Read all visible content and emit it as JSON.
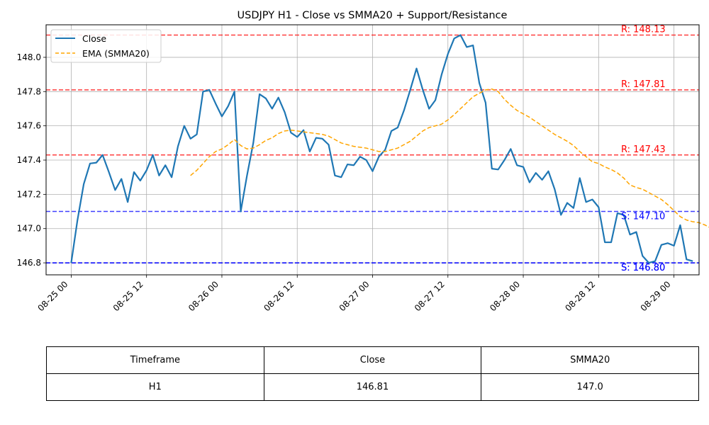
{
  "chart_data": {
    "type": "line",
    "title": "USDJPY H1 - Close vs SMMA20 + Support/Resistance",
    "xlabel": "",
    "ylabel": "",
    "x_range": [
      "2025-08-24 20:00",
      "2025-08-29 04:00"
    ],
    "ylim": [
      146.73,
      148.19
    ],
    "x_ticks": [
      "08-25 00",
      "08-25 12",
      "08-26 00",
      "08-26 12",
      "08-27 00",
      "08-27 12",
      "08-28 00",
      "08-28 12",
      "08-29 00"
    ],
    "y_ticks": [
      "146.8",
      "147.0",
      "147.2",
      "147.4",
      "147.6",
      "147.8",
      "148.0"
    ],
    "grid": true,
    "legend_position": "top-left",
    "series": [
      {
        "name": "Close",
        "color": "#1f77b4",
        "style": "solid",
        "start": "2025-08-25 00:00",
        "step_hours": 1,
        "values": [
          146.8,
          147.05,
          147.26,
          147.38,
          147.385,
          147.43,
          147.33,
          147.225,
          147.29,
          147.155,
          147.33,
          147.28,
          147.34,
          147.43,
          147.31,
          147.37,
          147.3,
          147.48,
          147.6,
          147.525,
          147.55,
          147.8,
          147.81,
          147.73,
          147.655,
          147.715,
          147.8,
          147.1,
          147.31,
          147.5,
          147.785,
          147.76,
          147.7,
          147.765,
          147.68,
          147.56,
          147.535,
          147.575,
          147.45,
          147.53,
          147.525,
          147.49,
          147.31,
          147.3,
          147.375,
          147.37,
          147.42,
          147.4,
          147.335,
          147.42,
          147.46,
          147.57,
          147.59,
          147.69,
          147.81,
          147.935,
          147.81,
          147.7,
          147.75,
          147.9,
          148.02,
          148.11,
          148.13,
          148.06,
          148.07,
          147.85,
          147.735,
          147.35,
          147.345,
          147.4,
          147.465,
          147.37,
          147.36,
          147.27,
          147.325,
          147.285,
          147.335,
          147.23,
          147.08,
          147.15,
          147.12,
          147.295,
          147.155,
          147.17,
          147.125,
          146.92,
          146.92,
          147.09,
          147.08,
          146.965,
          146.98,
          146.84,
          146.8,
          146.81,
          146.905,
          146.915,
          146.9,
          147.02,
          146.82,
          146.81
        ]
      },
      {
        "name": "EMA (SMMA20)",
        "color": "#ffa500",
        "style": "dashed",
        "start": "2025-08-25 19:00",
        "step_hours": 1,
        "values": [
          147.31,
          147.34,
          147.38,
          147.42,
          147.45,
          147.465,
          147.49,
          147.52,
          147.485,
          147.465,
          147.47,
          147.49,
          147.515,
          147.53,
          147.555,
          147.57,
          147.575,
          147.57,
          147.565,
          147.56,
          147.555,
          147.55,
          147.54,
          147.52,
          147.5,
          147.49,
          147.48,
          147.475,
          147.47,
          147.46,
          147.45,
          147.45,
          147.46,
          147.47,
          147.49,
          147.51,
          147.54,
          147.57,
          147.59,
          147.6,
          147.61,
          147.635,
          147.665,
          147.7,
          147.735,
          147.77,
          147.79,
          147.81,
          147.815,
          147.8,
          147.755,
          147.72,
          147.69,
          147.67,
          147.65,
          147.625,
          147.6,
          147.575,
          147.55,
          147.53,
          147.51,
          147.485,
          147.45,
          147.42,
          147.39,
          147.38,
          147.36,
          147.345,
          147.325,
          147.295,
          147.255,
          147.24,
          147.23,
          147.21,
          147.19,
          147.17,
          147.14,
          147.105,
          147.07,
          147.05,
          147.04,
          147.035,
          147.02,
          147.0
        ]
      }
    ],
    "levels": [
      {
        "kind": "resistance",
        "value": 148.13,
        "label": "R: 148.13",
        "color": "#ff0000"
      },
      {
        "kind": "resistance",
        "value": 147.81,
        "label": "R: 147.81",
        "color": "#ff0000"
      },
      {
        "kind": "resistance",
        "value": 147.43,
        "label": "R: 147.43",
        "color": "#ff0000"
      },
      {
        "kind": "support",
        "value": 147.1,
        "label": "S: 147.10",
        "color": "#0000ff"
      },
      {
        "kind": "support",
        "value": 146.8,
        "label": "S: 146.80",
        "color": "#0000ff"
      },
      {
        "kind": "support",
        "value": 146.8,
        "label": "S: 146.80",
        "color": "#0000ff"
      }
    ]
  },
  "table": {
    "headers": [
      "Timeframe",
      "Close",
      "SMMA20"
    ],
    "row": [
      "H1",
      "146.81",
      "147.0"
    ]
  }
}
